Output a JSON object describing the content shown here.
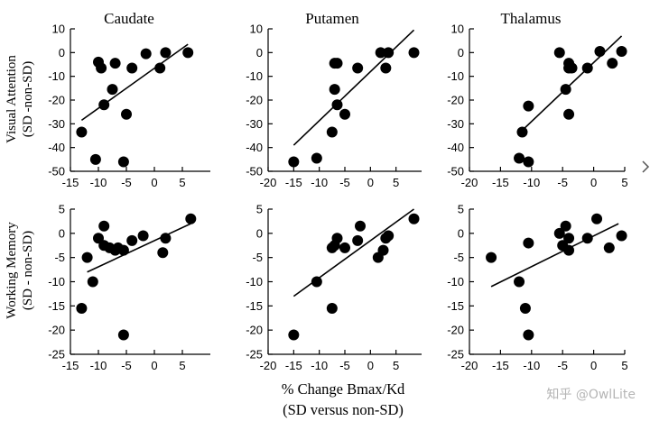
{
  "chart_data": {
    "type": "scatter",
    "column_titles": [
      "Caudate",
      "Putamen",
      "Thalamus"
    ],
    "row_labels": [
      [
        "Visual Attention",
        "(SD -non-SD)"
      ],
      [
        "Working Memory",
        "(SD - non-SD)"
      ]
    ],
    "xlabel": [
      "% Change Bmax/Kd",
      "(SD versus non-SD)"
    ],
    "watermark": "知乎 @OwlLite",
    "panels": [
      {
        "row": 0,
        "col": 0,
        "xlim": [
          -15,
          10
        ],
        "ylim": [
          -50,
          10
        ],
        "xticks": [
          -15,
          -10,
          -5,
          0,
          5
        ],
        "yticks": [
          10,
          0,
          -10,
          -20,
          -30,
          -40,
          -50
        ],
        "x": [
          -13,
          -10.5,
          -10,
          -9.5,
          -9,
          -7.5,
          -7,
          -5.5,
          -5,
          -4,
          -1.5,
          1,
          2,
          6
        ],
        "y": [
          -33.5,
          -45,
          -4,
          -6.5,
          -22,
          -15.5,
          -4.5,
          -46,
          -26,
          -6.5,
          -0.5,
          -6.5,
          0,
          0
        ],
        "fit": [
          [
            -13,
            -28.5
          ],
          [
            6,
            3.5
          ]
        ]
      },
      {
        "row": 0,
        "col": 1,
        "xlim": [
          -20,
          10
        ],
        "ylim": [
          -50,
          10
        ],
        "xticks": [
          -20,
          -15,
          -10,
          -5,
          0,
          5
        ],
        "yticks": [
          10,
          0,
          -10,
          -20,
          -30,
          -40,
          -50
        ],
        "x": [
          -15,
          -10.5,
          -7.5,
          -7,
          -7,
          -6.5,
          -6.5,
          -5,
          -2.5,
          2,
          3,
          3.5,
          8.5
        ],
        "y": [
          -46,
          -44.5,
          -33.5,
          -4.5,
          -15.5,
          -22,
          -4.5,
          -26,
          -6.5,
          0,
          -6.5,
          0,
          0
        ],
        "fit": [
          [
            -15,
            -39
          ],
          [
            8.5,
            9.5
          ]
        ]
      },
      {
        "row": 0,
        "col": 2,
        "xlim": [
          -20,
          5
        ],
        "ylim": [
          -50,
          10
        ],
        "xticks": [
          -20,
          -15,
          -10,
          -5,
          0,
          5
        ],
        "yticks": [
          10,
          0,
          -10,
          -20,
          -30,
          -40,
          -50
        ],
        "x": [
          -12,
          -11.5,
          -10.5,
          -10.5,
          -5.5,
          -4.5,
          -4,
          -4,
          -4,
          -3.5,
          -1,
          1,
          3,
          4.5
        ],
        "y": [
          -44.5,
          -33.5,
          -46,
          -22.5,
          0,
          -15.5,
          -26,
          -6.5,
          -4.5,
          -6.5,
          -6.5,
          0.5,
          -4.5,
          0.5
        ],
        "fit": [
          [
            -12,
            -34
          ],
          [
            4.5,
            7
          ]
        ]
      },
      {
        "row": 1,
        "col": 0,
        "xlim": [
          -15,
          10
        ],
        "ylim": [
          -25,
          5
        ],
        "xticks": [
          -15,
          -10,
          -5,
          0,
          5
        ],
        "yticks": [
          5,
          0,
          -5,
          -10,
          -15,
          -20,
          -25
        ],
        "x": [
          -13,
          -12,
          -11,
          -10,
          -9,
          -9,
          -8,
          -7,
          -6.5,
          -5.5,
          -5.5,
          -4,
          -2,
          1.5,
          2,
          6.5
        ],
        "y": [
          -15.5,
          -5,
          -10,
          -1,
          1.5,
          -2.5,
          -3,
          -3.5,
          -3,
          -3.5,
          -21,
          -1.5,
          -0.5,
          -4,
          -1,
          3
        ],
        "fit": [
          [
            -12,
            -8
          ],
          [
            6.5,
            2
          ]
        ]
      },
      {
        "row": 1,
        "col": 1,
        "xlim": [
          -20,
          10
        ],
        "ylim": [
          -25,
          5
        ],
        "xticks": [
          -20,
          -15,
          -10,
          -5,
          0,
          5
        ],
        "yticks": [
          5,
          0,
          -5,
          -10,
          -15,
          -20,
          -25
        ],
        "x": [
          -15,
          -10.5,
          -7.5,
          -7.5,
          -7,
          -6.5,
          -5,
          -2.5,
          -2,
          1.5,
          2.5,
          3,
          3.5,
          8.5
        ],
        "y": [
          -21,
          -10,
          -3,
          -15.5,
          -2.5,
          -1,
          -3,
          -1.5,
          1.5,
          -5,
          -3.5,
          -1,
          -0.5,
          3
        ],
        "fit": [
          [
            -15,
            -13
          ],
          [
            8.5,
            5
          ]
        ]
      },
      {
        "row": 1,
        "col": 2,
        "xlim": [
          -20,
          5
        ],
        "ylim": [
          -25,
          5
        ],
        "xticks": [
          -20,
          -15,
          -10,
          -5,
          0,
          5
        ],
        "yticks": [
          5,
          0,
          -5,
          -10,
          -15,
          -20,
          -25
        ],
        "x": [
          -16.5,
          -12,
          -11,
          -10.5,
          -10.5,
          -5.5,
          -5,
          -4.5,
          -4,
          -4,
          -1,
          0.5,
          2.5,
          4.5
        ],
        "y": [
          -5,
          -10,
          -15.5,
          -21,
          -2,
          0,
          -2.5,
          1.5,
          -3.5,
          -1,
          -1,
          3,
          -3,
          -0.5
        ],
        "fit": [
          [
            -16.5,
            -11
          ],
          [
            4,
            2
          ]
        ]
      }
    ]
  }
}
